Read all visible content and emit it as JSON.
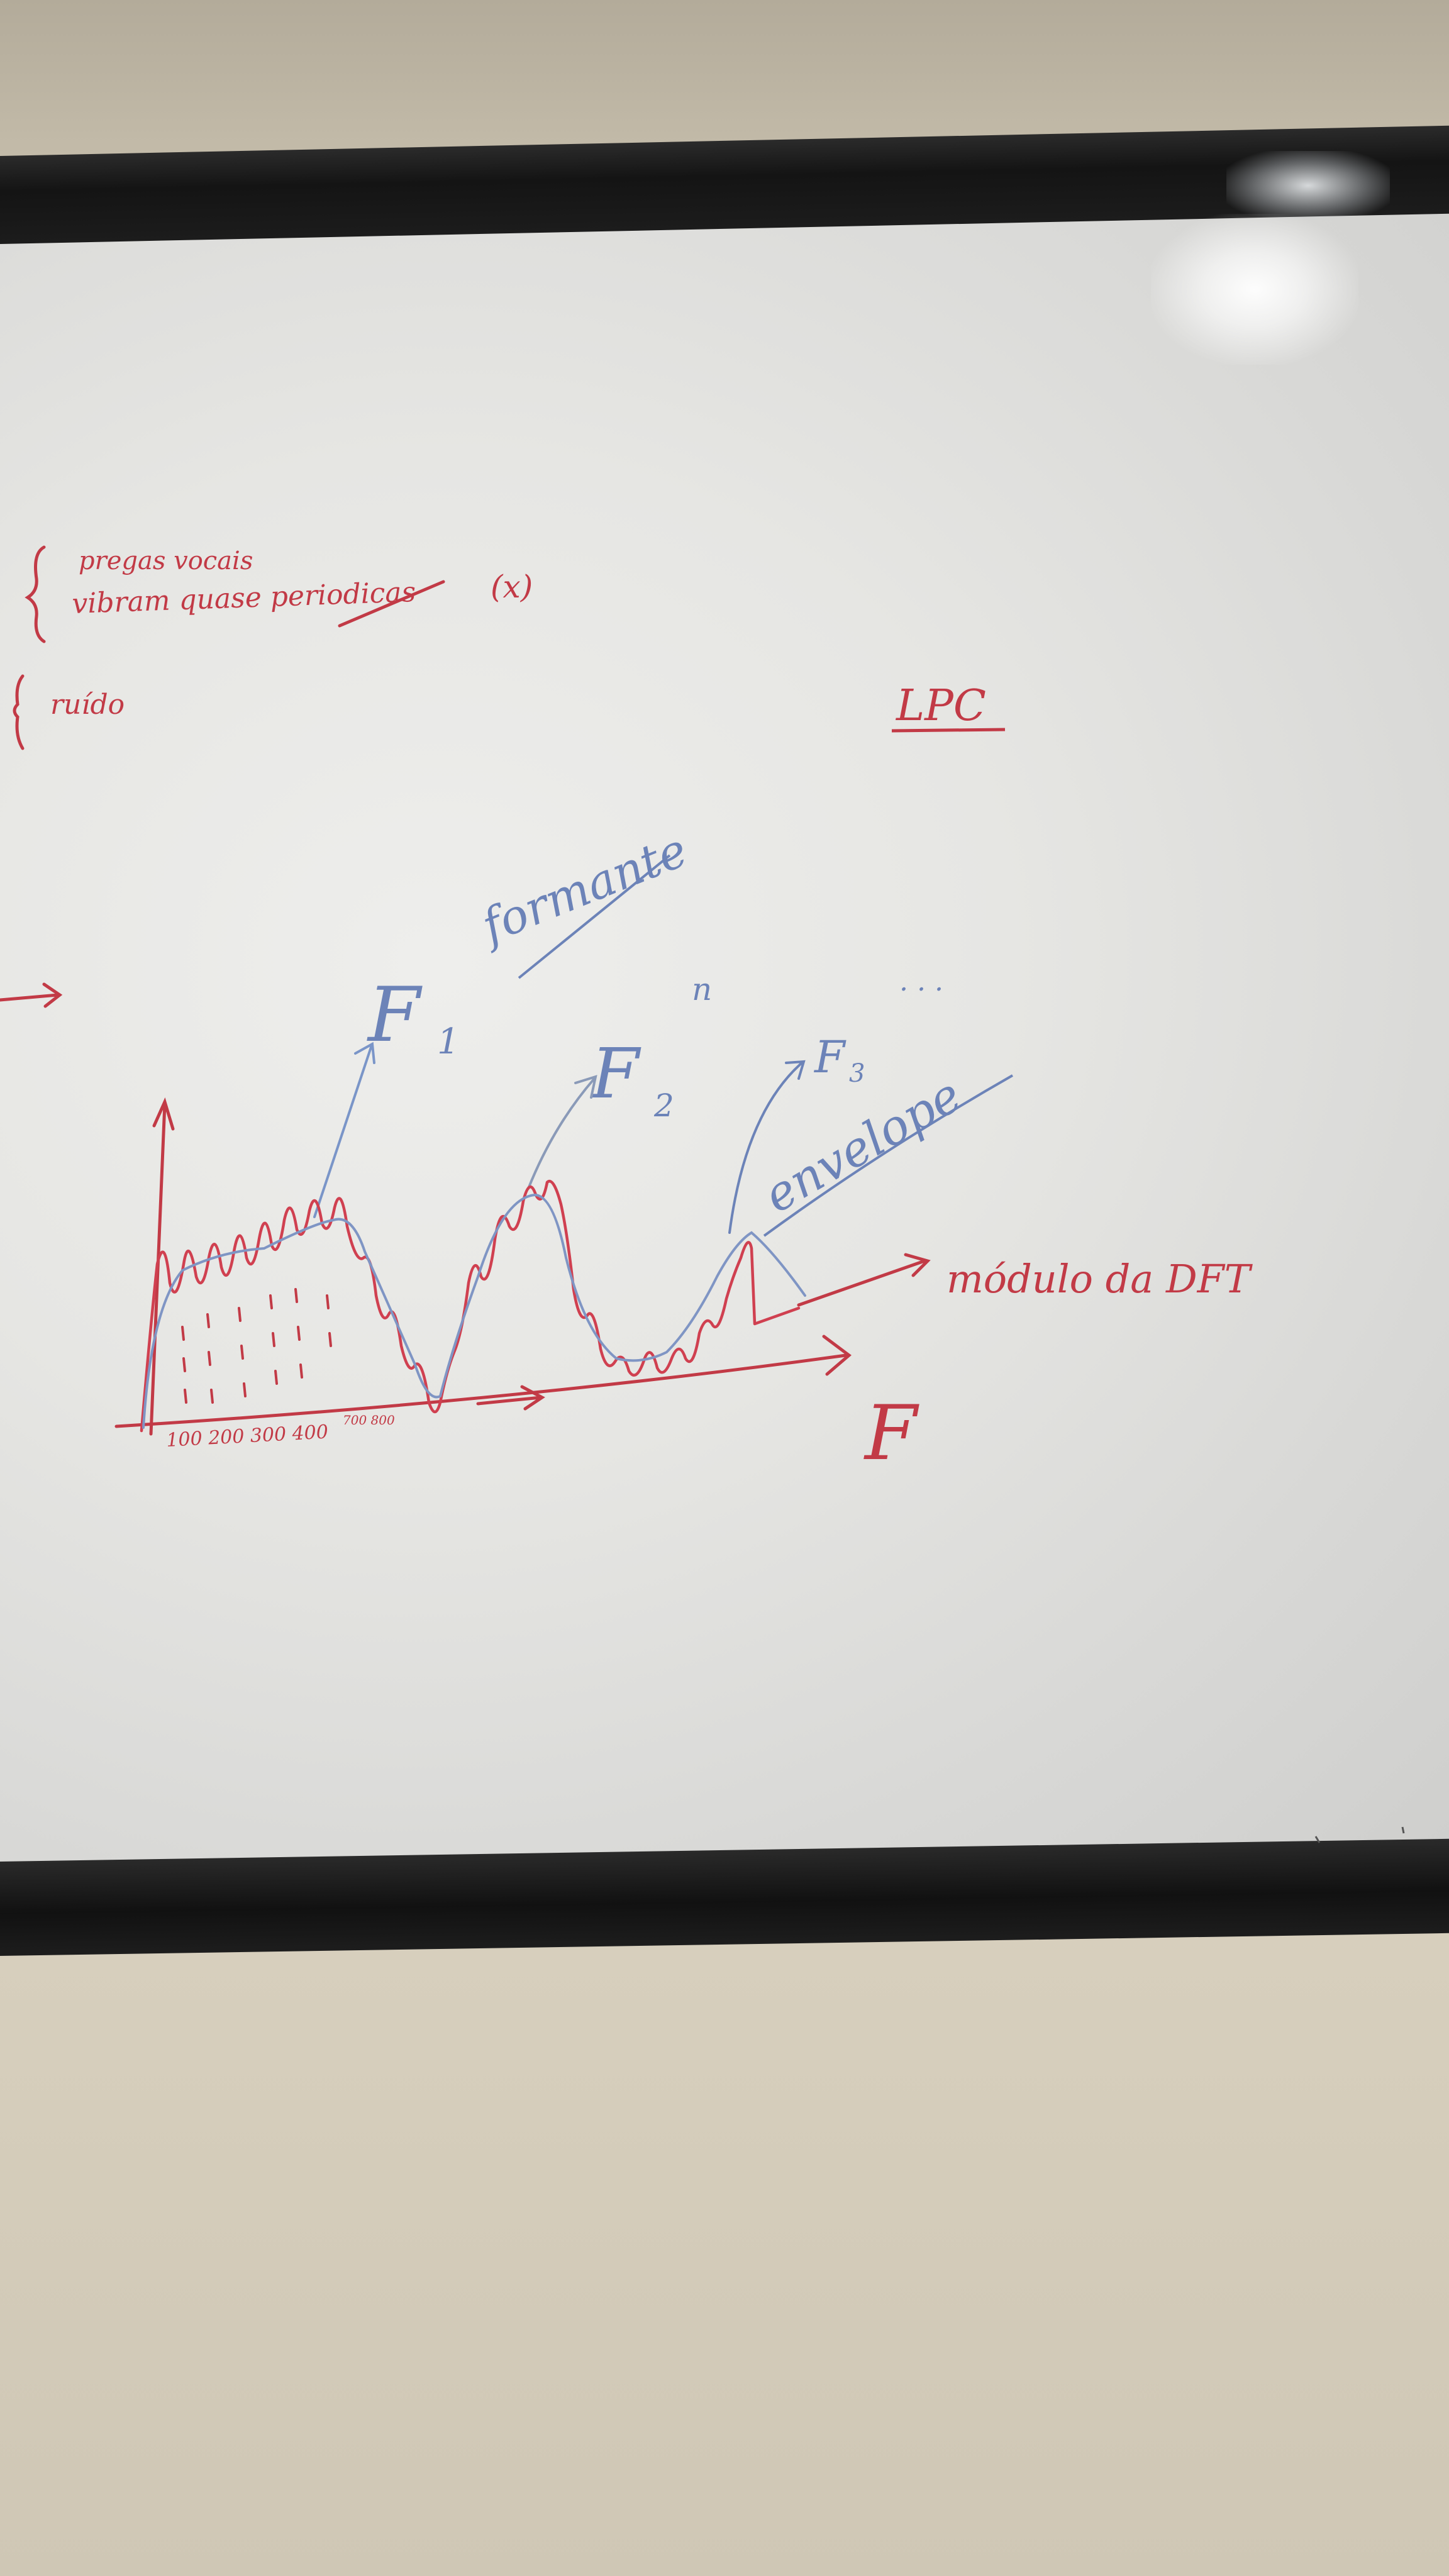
{
  "board": {
    "line1": "pregas vocais",
    "line2": "vibram quase periodicas",
    "x_mark": "(x)",
    "noise": "ruído",
    "lpc": "LPC",
    "f1": "F",
    "f1_sub": "1",
    "formante": "formante",
    "f2": "F",
    "f2_sub": "2",
    "f2_extra": "n",
    "f3": "F",
    "f3_sub": "3",
    "ellipsis": ". . .",
    "envelope": "envelope",
    "dft": "módulo da DFT",
    "axis_f": "F",
    "ticks": "100 200 300 400",
    "tick_small": "700 800"
  },
  "colors": {
    "red_ink": "#c23a46",
    "blue_ink": "#6c83b8",
    "frame": "#151515",
    "wall": "#d8d0be"
  }
}
